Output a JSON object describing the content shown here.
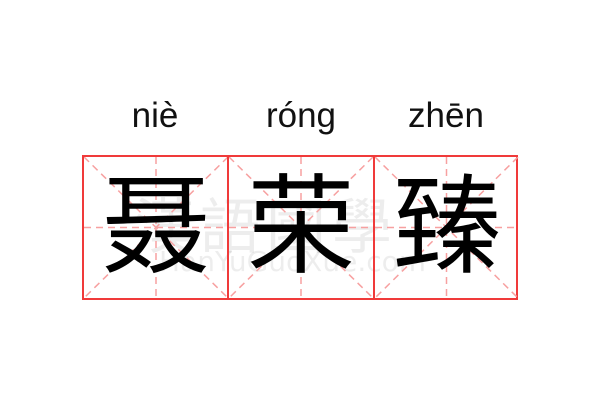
{
  "pinyin": [
    "niè",
    "róng",
    "zhēn"
  ],
  "hanzi": [
    "聂",
    "荣",
    "臻"
  ],
  "watermark": {
    "cn": "漢語國學",
    "en": "HanYuGuoXue.com"
  },
  "colors": {
    "border": "#f03a3a",
    "guide": "#f7a0a0"
  }
}
